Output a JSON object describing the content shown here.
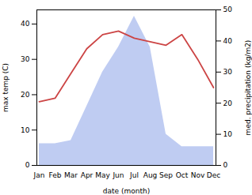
{
  "chart_data": {
    "type": "line",
    "categories": [
      "Jan",
      "Feb",
      "Mar",
      "Apr",
      "May",
      "Jun",
      "Jul",
      "Aug",
      "Sep",
      "Oct",
      "Nov",
      "Dec"
    ],
    "xlabel": "date (month)",
    "ylabel": "max temp (C)",
    "y2label": "med. precipitation (kg/m2)",
    "ylim": [
      0,
      44
    ],
    "yticks": [
      0,
      10,
      20,
      30,
      40
    ],
    "y2lim": [
      0,
      50
    ],
    "y2ticks": [
      0,
      10,
      20,
      30,
      40,
      50
    ],
    "series": [
      {
        "type": "area",
        "axis": "y2",
        "color": "#aabbee",
        "values": [
          7,
          7,
          8,
          19,
          30,
          38,
          48,
          38,
          10,
          6,
          6,
          6
        ]
      },
      {
        "type": "line",
        "color": "#cc4444",
        "values": [
          18,
          19,
          26,
          33,
          37,
          38,
          36,
          35,
          34,
          37,
          30,
          22
        ]
      }
    ]
  }
}
